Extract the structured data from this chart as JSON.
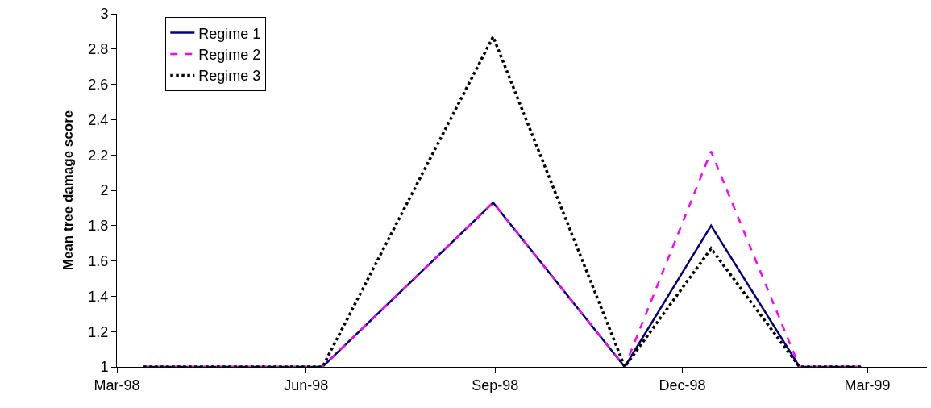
{
  "chart_data": {
    "type": "line",
    "ylabel": "Mean tree damage score",
    "x": [
      "1998-03-14",
      "1998-06-09",
      "1998-08-31",
      "1998-11-03",
      "1998-12-15",
      "1999-01-27",
      "1999-02-26"
    ],
    "series": [
      {
        "name": "Regime 1",
        "color": "#000080",
        "line_style": "solid",
        "values": [
          1,
          1,
          1.93,
          1,
          1.8,
          1,
          1
        ]
      },
      {
        "name": "Regime 2",
        "color": "#ff00ff",
        "line_style": "dashed",
        "values": [
          1,
          1,
          1.93,
          1,
          2.22,
          1,
          1
        ]
      },
      {
        "name": "Regime 3",
        "color": "#000000",
        "line_style": "dotted",
        "values": [
          1,
          1,
          2.87,
          1,
          1.67,
          1,
          1
        ]
      }
    ],
    "xlim": [
      "1998-03-01",
      "1999-03-30"
    ],
    "xticks": [
      {
        "value": "1998-03-01",
        "label": "Mar-98"
      },
      {
        "value": "1998-06-01",
        "label": "Jun-98"
      },
      {
        "value": "1998-09-01",
        "label": "Sep-98"
      },
      {
        "value": "1998-12-01",
        "label": "Dec-98"
      },
      {
        "value": "1999-03-01",
        "label": "Mar-99"
      }
    ],
    "ylim": [
      1,
      3
    ],
    "yticks": [
      1,
      1.2,
      1.4,
      1.6,
      1.8,
      2,
      2.2,
      2.4,
      2.6,
      2.8,
      3
    ],
    "grid": false,
    "legend": "top left",
    "marker": "none"
  }
}
